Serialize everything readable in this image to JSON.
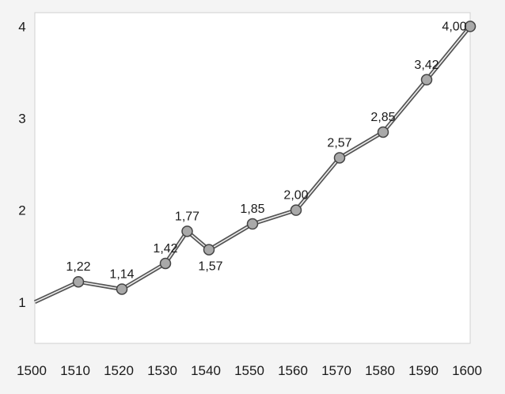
{
  "chart_data": {
    "type": "line",
    "title": "",
    "xlabel": "",
    "ylabel": "",
    "x_ticks": [
      "1500",
      "1510",
      "1520",
      "1530",
      "1540",
      "1550",
      "1560",
      "1570",
      "1580",
      "1590",
      "1600"
    ],
    "y_ticks": [
      "1",
      "2",
      "3",
      "4"
    ],
    "xlim": [
      1500,
      1600
    ],
    "ylim": [
      0.55,
      4.15
    ],
    "grid": false,
    "legend": "none",
    "line_color": "#555555",
    "marker_color": "#a9a9a9",
    "series": [
      {
        "x": [
          1500,
          1510,
          1520,
          1530,
          1535,
          1540,
          1550,
          1560,
          1570,
          1580,
          1590,
          1600
        ],
        "values": [
          1.0,
          1.22,
          1.14,
          1.42,
          1.77,
          1.57,
          1.85,
          2.0,
          2.57,
          2.85,
          3.42,
          4.0
        ],
        "labels": [
          "",
          "1,22",
          "1,14",
          "1,42",
          "1,77",
          "1,57",
          "1,85",
          "2,00",
          "2,57",
          "2,85",
          "3,42",
          "4,00"
        ]
      }
    ]
  }
}
